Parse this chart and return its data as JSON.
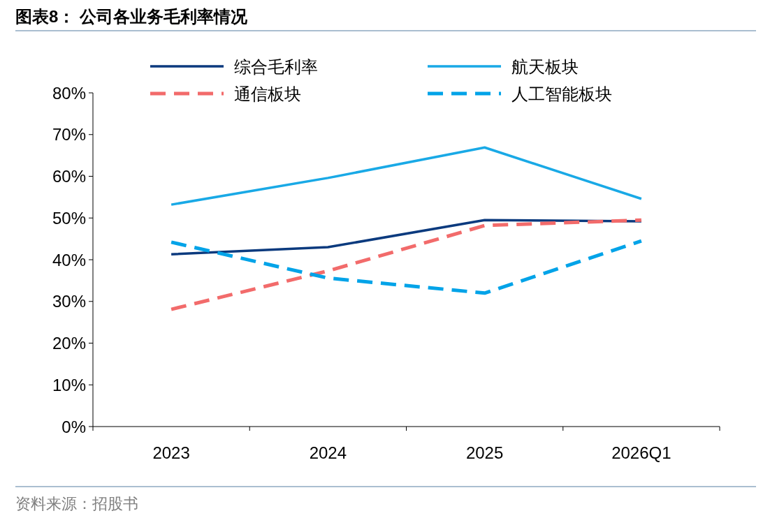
{
  "chart_data": {
    "type": "line",
    "title": "图表8：  公司各业务毛利率情况",
    "categories": [
      "2023",
      "2024",
      "2025",
      "2026Q1"
    ],
    "series": [
      {
        "name": "综合毛利率",
        "color": "#0b3a7e",
        "values": [
          41.3,
          43.0,
          49.5,
          49.2
        ],
        "line_style": "solid"
      },
      {
        "name": "航天板块",
        "color": "#19a9e6",
        "values": [
          53.2,
          59.6,
          66.9,
          54.6
        ],
        "line_style": "solid"
      },
      {
        "name": "通信板块",
        "color": "#f26b6b",
        "values": [
          28.1,
          37.3,
          48.2,
          49.5
        ],
        "line_style": "dashed"
      },
      {
        "name": "人工智能板块",
        "color": "#00a3e8",
        "values": [
          44.2,
          35.6,
          32.0,
          44.5
        ],
        "line_style": "dashed"
      }
    ],
    "ylim": [
      0,
      80
    ],
    "yticks": [
      {
        "value": 0,
        "label": "0%"
      },
      {
        "value": 10,
        "label": "10%"
      },
      {
        "value": 20,
        "label": "20%"
      },
      {
        "value": 30,
        "label": "30%"
      },
      {
        "value": 40,
        "label": "40%"
      },
      {
        "value": 50,
        "label": "50%"
      },
      {
        "value": 60,
        "label": "60%"
      },
      {
        "value": 70,
        "label": "70%"
      },
      {
        "value": 80,
        "label": "80%"
      }
    ],
    "grid": false,
    "legend": "top",
    "marker": "none",
    "annotations": [
      "资料来源：招股书"
    ]
  }
}
